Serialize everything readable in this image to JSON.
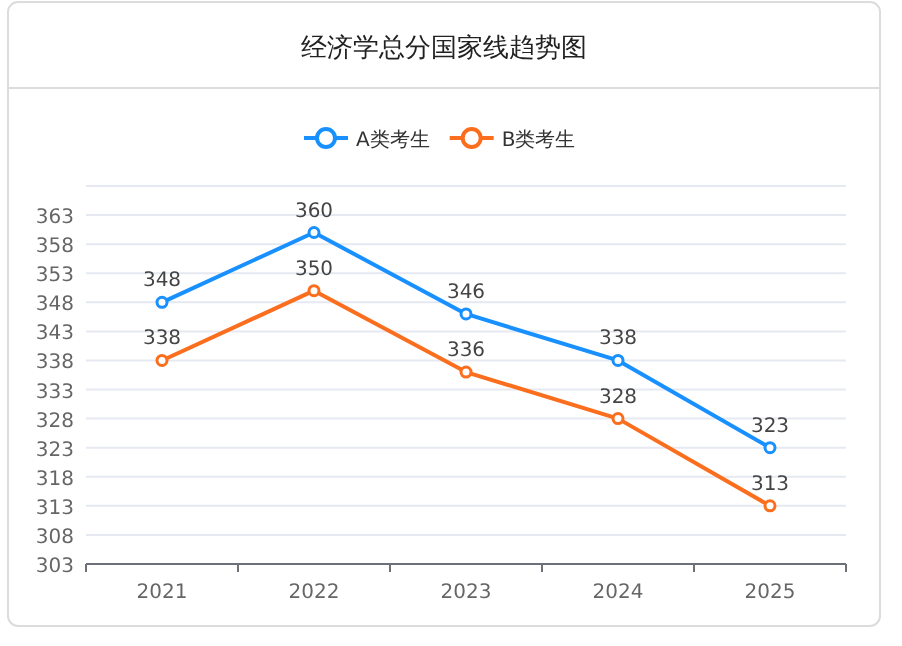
{
  "chart_data": {
    "type": "line",
    "title": "经济学总分国家线趋势图",
    "categories": [
      "2021",
      "2022",
      "2023",
      "2024",
      "2025"
    ],
    "series": [
      {
        "name": "A类考生",
        "color": "#1890ff",
        "values": [
          348,
          360,
          346,
          338,
          323
        ]
      },
      {
        "name": "B类考生",
        "color": "#fa6e1e",
        "values": [
          338,
          350,
          336,
          328,
          313
        ]
      }
    ],
    "ylim": [
      303,
      368
    ],
    "yticks": [
      303,
      308,
      313,
      318,
      323,
      328,
      333,
      338,
      343,
      348,
      353,
      358,
      363,
      {
        "value": 368,
        "label": null
      }
    ],
    "grid": "y",
    "legend": "top",
    "marker": "circle",
    "line_style": "solid",
    "data_labels": true
  }
}
